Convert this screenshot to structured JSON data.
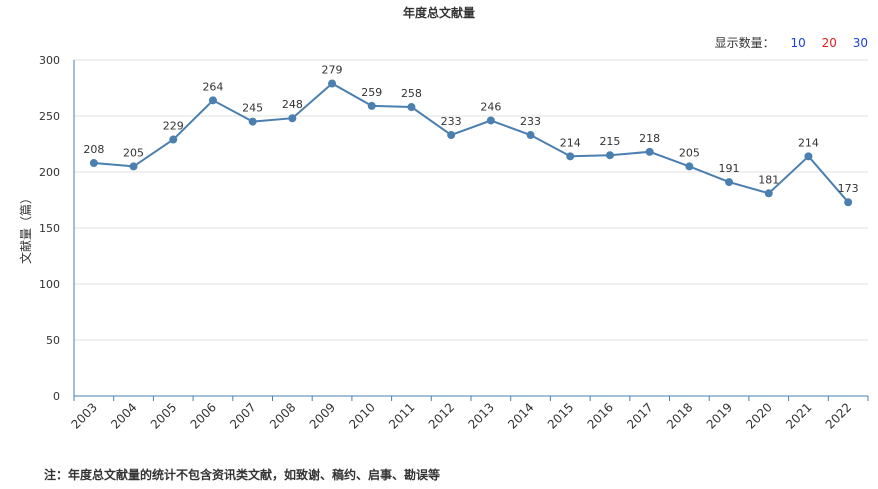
{
  "display_count": {
    "label": "显示数量：",
    "options": [
      {
        "label": "10",
        "color": "#1a3fd6"
      },
      {
        "label": "20",
        "color": "#e0201c"
      },
      {
        "label": "30",
        "color": "#1a3fd6"
      }
    ]
  },
  "footnote": "注：年度总文献量的统计不包含资讯类文献，如致谢、稿约、启事、勘误等",
  "chart_data": {
    "type": "line",
    "title": "年度总文献量",
    "xlabel": "",
    "ylabel": "文献量（篇）",
    "ylim": [
      0,
      300
    ],
    "yticks": [
      0,
      50,
      100,
      150,
      200,
      250,
      300
    ],
    "grid": true,
    "line_color": "#4a7fb0",
    "x": [
      "2003",
      "2004",
      "2005",
      "2006",
      "2007",
      "2008",
      "2009",
      "2010",
      "2011",
      "2012",
      "2013",
      "2014",
      "2015",
      "2016",
      "2017",
      "2018",
      "2019",
      "2020",
      "2021",
      "2022"
    ],
    "values": [
      208,
      205,
      229,
      264,
      245,
      248,
      279,
      259,
      258,
      233,
      246,
      233,
      214,
      215,
      218,
      205,
      191,
      181,
      214,
      173
    ]
  }
}
